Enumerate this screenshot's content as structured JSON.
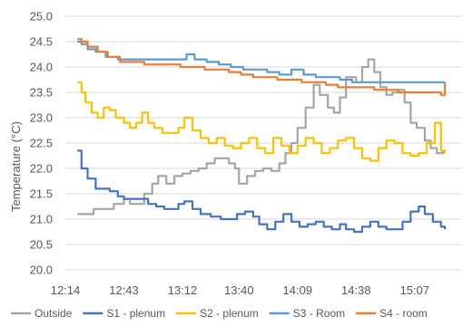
{
  "chart_data": {
    "type": "line",
    "title": "",
    "xlabel": "",
    "ylabel": "Temperature (°C)",
    "ylim": [
      20.0,
      25.0
    ],
    "ytick_step": 0.5,
    "y_ticks": [
      "20.0",
      "20.5",
      "21.0",
      "21.5",
      "22.0",
      "22.5",
      "23.0",
      "23.5",
      "24.0",
      "24.5",
      "25.0"
    ],
    "x_ticks": [
      "12:14",
      "12:43",
      "13:12",
      "13:40",
      "14:09",
      "14:38",
      "15:07"
    ],
    "xlim": [
      "12:14",
      "15:30"
    ],
    "grid": true,
    "legend_position": "bottom",
    "colors": {
      "Outside": "#a5a5a5",
      "S1 - plenum": "#4472c4",
      "S2 - plenum": "#ffc000",
      "S3 - Room": "#5b9bd5",
      "S4 - room": "#ed7d31"
    },
    "series": [
      {
        "name": "Outside",
        "x": [
          "12:20",
          "12:24",
          "12:28",
          "12:34",
          "12:38",
          "12:43",
          "12:46",
          "12:50",
          "12:53",
          "12:57",
          "13:00",
          "13:04",
          "13:08",
          "13:12",
          "13:16",
          "13:20",
          "13:24",
          "13:28",
          "13:31",
          "13:35",
          "13:38",
          "13:40",
          "13:44",
          "13:48",
          "13:52",
          "13:56",
          "14:00",
          "14:03",
          "14:06",
          "14:09",
          "14:13",
          "14:17",
          "14:20",
          "14:24",
          "14:27",
          "14:30",
          "14:33",
          "14:36",
          "14:38",
          "14:41",
          "14:44",
          "14:47",
          "14:50",
          "14:53",
          "14:56",
          "14:59",
          "15:02",
          "15:05",
          "15:08",
          "15:12",
          "15:15",
          "15:18",
          "15:21"
        ],
        "values": [
          21.1,
          21.1,
          21.2,
          21.2,
          21.3,
          21.4,
          21.3,
          21.3,
          21.5,
          21.7,
          21.85,
          21.7,
          21.85,
          21.9,
          21.95,
          22.0,
          22.1,
          22.2,
          22.2,
          22.1,
          22.0,
          21.7,
          21.85,
          21.95,
          22.0,
          21.95,
          22.1,
          22.3,
          22.5,
          22.8,
          23.2,
          23.65,
          23.45,
          23.2,
          23.1,
          23.4,
          23.8,
          23.8,
          23.7,
          24.0,
          24.15,
          23.9,
          23.6,
          23.45,
          23.5,
          23.55,
          23.3,
          22.9,
          22.8,
          22.55,
          22.4,
          22.3,
          22.35
        ]
      },
      {
        "name": "S1 - plenum",
        "x": [
          "12:20",
          "12:22",
          "12:25",
          "12:29",
          "12:32",
          "12:36",
          "12:40",
          "12:43",
          "12:47",
          "12:51",
          "12:55",
          "12:59",
          "13:03",
          "13:07",
          "13:10",
          "13:13",
          "13:17",
          "13:21",
          "13:26",
          "13:31",
          "13:35",
          "13:39",
          "13:43",
          "13:47",
          "13:50",
          "13:54",
          "13:58",
          "14:02",
          "14:06",
          "14:10",
          "14:14",
          "14:18",
          "14:22",
          "14:26",
          "14:30",
          "14:33",
          "14:37",
          "14:41",
          "14:45",
          "14:49",
          "14:53",
          "14:57",
          "15:01",
          "15:05",
          "15:09",
          "15:12",
          "15:16",
          "15:20",
          "15:22"
        ],
        "values": [
          22.35,
          22.0,
          21.8,
          21.6,
          21.6,
          21.55,
          21.45,
          21.4,
          21.4,
          21.4,
          21.3,
          21.25,
          21.2,
          21.2,
          21.3,
          21.35,
          21.2,
          21.1,
          21.05,
          21.0,
          21.0,
          21.1,
          21.15,
          21.05,
          20.9,
          20.8,
          20.95,
          21.1,
          20.95,
          20.85,
          20.9,
          20.95,
          20.85,
          20.8,
          20.9,
          20.8,
          20.75,
          20.85,
          20.95,
          20.85,
          20.8,
          20.8,
          20.95,
          21.15,
          21.25,
          21.1,
          20.95,
          20.85,
          20.8
        ]
      },
      {
        "name": "S2 - plenum",
        "x": [
          "12:20",
          "12:22",
          "12:24",
          "12:27",
          "12:30",
          "12:33",
          "12:36",
          "12:39",
          "12:43",
          "12:46",
          "12:49",
          "12:52",
          "12:55",
          "12:58",
          "13:02",
          "13:06",
          "13:10",
          "13:13",
          "13:17",
          "13:21",
          "13:25",
          "13:29",
          "13:33",
          "13:37",
          "13:41",
          "13:45",
          "13:49",
          "13:53",
          "13:57",
          "14:01",
          "14:05",
          "14:09",
          "14:13",
          "14:17",
          "14:21",
          "14:25",
          "14:29",
          "14:33",
          "14:37",
          "14:41",
          "14:45",
          "14:49",
          "14:53",
          "14:57",
          "15:01",
          "15:05",
          "15:09",
          "15:13",
          "15:17",
          "15:20",
          "15:22"
        ],
        "values": [
          23.7,
          23.5,
          23.3,
          23.1,
          23.0,
          23.2,
          23.15,
          23.0,
          22.9,
          22.8,
          22.9,
          23.1,
          22.9,
          22.8,
          22.7,
          22.7,
          22.8,
          23.0,
          22.75,
          22.6,
          22.5,
          22.6,
          22.45,
          22.4,
          22.5,
          22.6,
          22.4,
          22.3,
          22.6,
          22.45,
          22.3,
          22.45,
          22.6,
          22.5,
          22.3,
          22.4,
          22.55,
          22.6,
          22.4,
          22.2,
          22.15,
          22.4,
          22.55,
          22.5,
          22.3,
          22.25,
          22.3,
          22.5,
          22.9,
          22.35,
          22.3
        ]
      },
      {
        "name": "S3 - Room",
        "x": [
          "12:20",
          "12:22",
          "12:25",
          "12:29",
          "12:34",
          "12:40",
          "12:46",
          "12:52",
          "12:58",
          "13:04",
          "13:10",
          "13:14",
          "13:18",
          "13:24",
          "13:30",
          "13:36",
          "13:42",
          "13:48",
          "13:54",
          "14:00",
          "14:06",
          "14:12",
          "14:18",
          "14:24",
          "14:30",
          "14:36",
          "14:42",
          "14:48",
          "14:54",
          "15:00",
          "15:06",
          "15:12",
          "15:18",
          "15:22"
        ],
        "values": [
          24.5,
          24.45,
          24.35,
          24.3,
          24.2,
          24.15,
          24.15,
          24.15,
          24.15,
          24.15,
          24.15,
          24.25,
          24.15,
          24.1,
          24.05,
          24.0,
          23.95,
          23.95,
          23.9,
          23.85,
          23.95,
          23.85,
          23.8,
          23.8,
          23.75,
          23.7,
          23.7,
          23.7,
          23.7,
          23.7,
          23.7,
          23.7,
          23.7,
          23.7
        ]
      },
      {
        "name": "S4 - room",
        "x": [
          "12:20",
          "12:22",
          "12:25",
          "12:30",
          "12:35",
          "12:41",
          "12:47",
          "12:53",
          "12:59",
          "13:05",
          "13:11",
          "13:17",
          "13:23",
          "13:29",
          "13:35",
          "13:41",
          "13:47",
          "13:53",
          "13:59",
          "14:05",
          "14:11",
          "14:17",
          "14:23",
          "14:29",
          "14:35",
          "14:41",
          "14:47",
          "14:53",
          "14:59",
          "15:05",
          "15:11",
          "15:17",
          "15:20",
          "15:22"
        ],
        "values": [
          24.55,
          24.5,
          24.4,
          24.3,
          24.2,
          24.1,
          24.1,
          24.05,
          24.05,
          24.05,
          24.0,
          24.0,
          23.95,
          23.95,
          23.9,
          23.85,
          23.8,
          23.8,
          23.75,
          23.75,
          23.7,
          23.7,
          23.65,
          23.6,
          23.6,
          23.6,
          23.55,
          23.55,
          23.5,
          23.5,
          23.5,
          23.5,
          23.45,
          23.7
        ]
      }
    ]
  }
}
